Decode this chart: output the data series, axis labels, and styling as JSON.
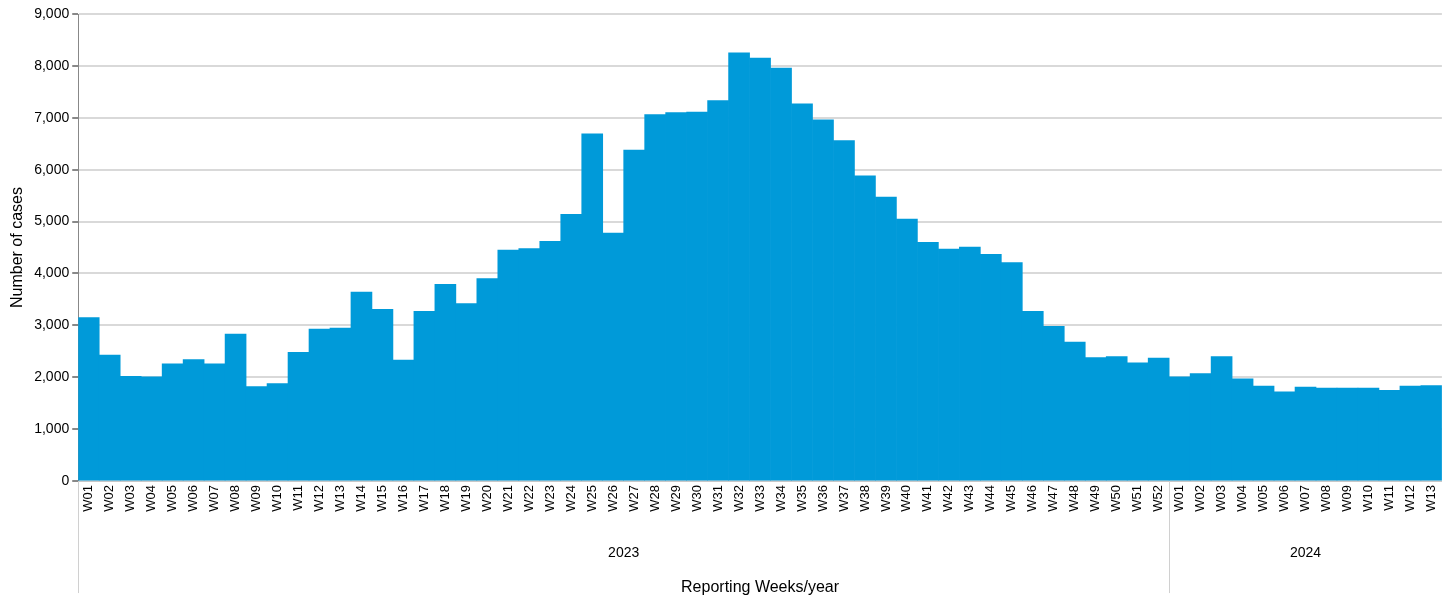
{
  "chart_data": {
    "type": "bar",
    "xlabel": "Reporting Weeks/year",
    "ylabel": "Number of cases",
    "categories": [
      "W01",
      "W02",
      "W03",
      "W04",
      "W05",
      "W06",
      "W07",
      "W08",
      "W09",
      "W10",
      "W11",
      "W12",
      "W13",
      "W14",
      "W15",
      "W16",
      "W17",
      "W18",
      "W19",
      "W20",
      "W21",
      "W22",
      "W23",
      "W24",
      "W25",
      "W26",
      "W27",
      "W28",
      "W29",
      "W30",
      "W31",
      "W32",
      "W33",
      "W34",
      "W35",
      "W36",
      "W37",
      "W38",
      "W39",
      "W40",
      "W41",
      "W42",
      "W43",
      "W44",
      "W45",
      "W46",
      "W47",
      "W48",
      "W49",
      "W50",
      "W51",
      "W52",
      "W01",
      "W02",
      "W03",
      "W04",
      "W05",
      "W06",
      "W07",
      "W08",
      "W09",
      "W10",
      "W11",
      "W12",
      "W13"
    ],
    "values": [
      3150,
      2430,
      2020,
      2010,
      2260,
      2340,
      2260,
      2830,
      1820,
      1880,
      2480,
      2930,
      2950,
      3640,
      3310,
      2330,
      3270,
      3790,
      3420,
      3900,
      4450,
      4480,
      4620,
      5140,
      6690,
      4780,
      6380,
      7060,
      7100,
      7110,
      7330,
      8250,
      8150,
      7960,
      7270,
      6960,
      6560,
      5880,
      5470,
      5050,
      4600,
      4470,
      4510,
      4370,
      4210,
      3270,
      2980,
      2680,
      2380,
      2400,
      2280,
      2370,
      2010,
      2070,
      2400,
      1970,
      1830,
      1720,
      1810,
      1790,
      1790,
      1790,
      1750,
      1830,
      1840
    ],
    "color": "#009ad9",
    "ylim": [
      0,
      9000
    ],
    "yticks": [
      0,
      {
        "value": 1000,
        "label": "1,000"
      },
      {
        "value": 2000,
        "label": "2,000"
      },
      {
        "value": 3000,
        "label": "3,000"
      },
      {
        "value": 4000,
        "label": "4,000"
      },
      {
        "value": 5000,
        "label": "5,000"
      },
      {
        "value": 6000,
        "label": "6,000"
      },
      {
        "value": 7000,
        "label": "7,000"
      },
      {
        "value": 8000,
        "label": "8,000"
      },
      {
        "value": 9000,
        "label": "9,000"
      }
    ],
    "annotations": [
      "2023",
      "2024"
    ],
    "grid": "y",
    "legend": false
  }
}
